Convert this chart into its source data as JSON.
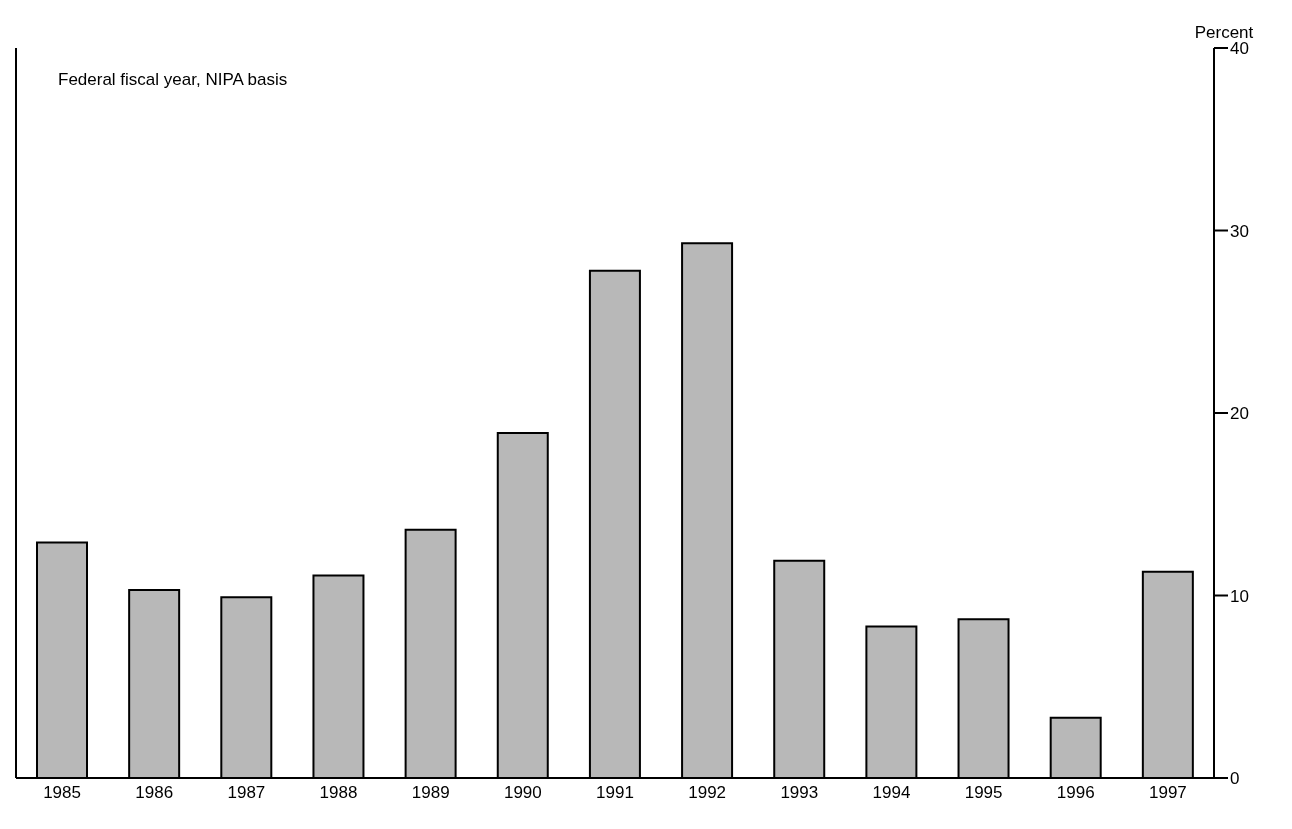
{
  "chart_data": {
    "type": "bar",
    "ylabel": "Percent",
    "annotations": [
      "Federal fiscal year, NIPA basis"
    ],
    "categories": [
      "1985",
      "1986",
      "1987",
      "1988",
      "1989",
      "1990",
      "1991",
      "1992",
      "1993",
      "1994",
      "1995",
      "1996",
      "1997"
    ],
    "values": [
      12.9,
      10.3,
      9.9,
      11.1,
      13.6,
      18.9,
      27.8,
      29.3,
      11.9,
      8.3,
      8.7,
      3.3,
      11.3
    ],
    "color": "#b8b8b8",
    "ylim": [
      0,
      40
    ],
    "yticks": [
      0,
      10,
      20,
      30,
      40
    ],
    "grid": false
  }
}
